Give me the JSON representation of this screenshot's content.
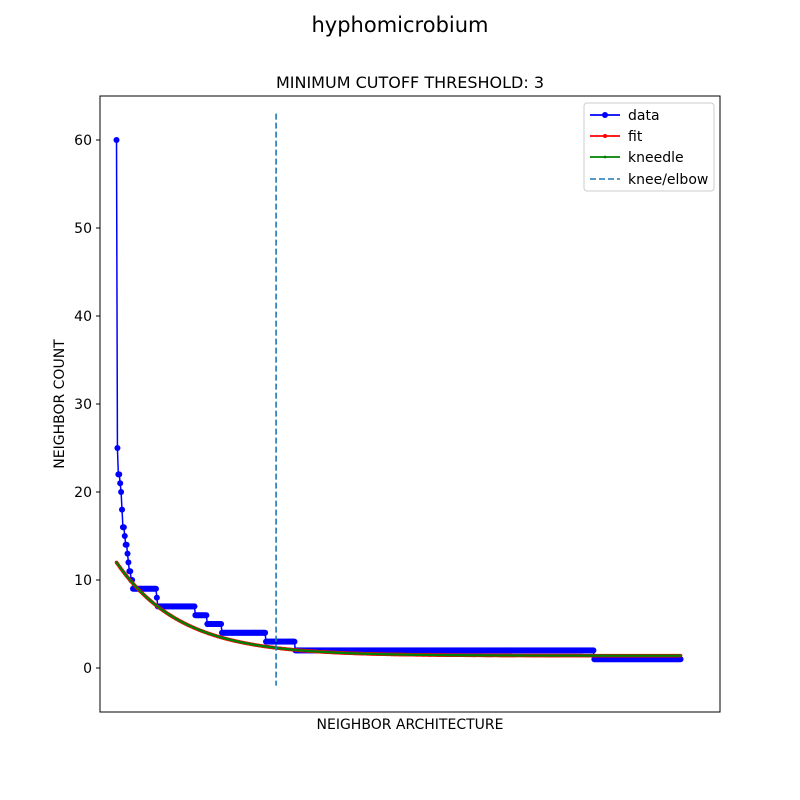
{
  "figure": {
    "suptitle": "hyphomicrobium"
  },
  "chart_data": {
    "type": "line",
    "title": "MINIMUM CUTOFF THRESHOLD: 3",
    "xlabel": "NEIGHBOR ARCHITECTURE",
    "ylabel": "NEIGHBOR COUNT",
    "x_ticks_shown": false,
    "ylim": [
      -5,
      65
    ],
    "xlim": [
      -18,
      658
    ],
    "yticks": [
      0,
      10,
      20,
      30,
      40,
      50,
      60
    ],
    "grid": false,
    "legend_position": "top-right",
    "x_count": 616,
    "knee_x": 174,
    "knee_ymin": -2,
    "knee_ymax": 63,
    "series": [
      {
        "name": "data",
        "color": "#0000ff",
        "marker": "circle",
        "segments": [
          {
            "x_from": 0,
            "x_to": 0,
            "y": 60
          },
          {
            "x_from": 1,
            "x_to": 1,
            "y": 25
          },
          {
            "x_from": 2,
            "x_to": 3,
            "y": 22
          },
          {
            "x_from": 4,
            "x_to": 4,
            "y": 21
          },
          {
            "x_from": 5,
            "x_to": 5,
            "y": 20
          },
          {
            "x_from": 6,
            "x_to": 6,
            "y": 18
          },
          {
            "x_from": 7,
            "x_to": 8,
            "y": 16
          },
          {
            "x_from": 9,
            "x_to": 9,
            "y": 15
          },
          {
            "x_from": 10,
            "x_to": 11,
            "y": 14
          },
          {
            "x_from": 12,
            "x_to": 12,
            "y": 13
          },
          {
            "x_from": 13,
            "x_to": 13,
            "y": 12
          },
          {
            "x_from": 14,
            "x_to": 15,
            "y": 11
          },
          {
            "x_from": 16,
            "x_to": 17,
            "y": 10
          },
          {
            "x_from": 18,
            "x_to": 43,
            "y": 9
          },
          {
            "x_from": 44,
            "x_to": 44,
            "y": 8
          },
          {
            "x_from": 45,
            "x_to": 85,
            "y": 7
          },
          {
            "x_from": 86,
            "x_to": 98,
            "y": 6
          },
          {
            "x_from": 99,
            "x_to": 114,
            "y": 5
          },
          {
            "x_from": 115,
            "x_to": 162,
            "y": 4
          },
          {
            "x_from": 163,
            "x_to": 194,
            "y": 3
          },
          {
            "x_from": 195,
            "x_to": 520,
            "y": 2
          },
          {
            "x_from": 521,
            "x_to": 615,
            "y": 1
          }
        ]
      },
      {
        "name": "fit",
        "color": "#ff0000",
        "marker": "point",
        "x_from": 0,
        "x_to": 615,
        "curve": {
          "a": 10.6,
          "k": 70,
          "c": 1.4
        },
        "y_start": 12.0,
        "y_end": 1.4
      },
      {
        "name": "kneedle",
        "color": "#008000",
        "marker": "point",
        "x_from": 0,
        "x_to": 615,
        "curve": {
          "a": 10.6,
          "k": 70,
          "c": 1.4
        },
        "y_start": 12.0,
        "y_end": 1.4
      },
      {
        "name": "knee/elbow",
        "color": "#1f77b4",
        "style": "dashed"
      }
    ]
  }
}
